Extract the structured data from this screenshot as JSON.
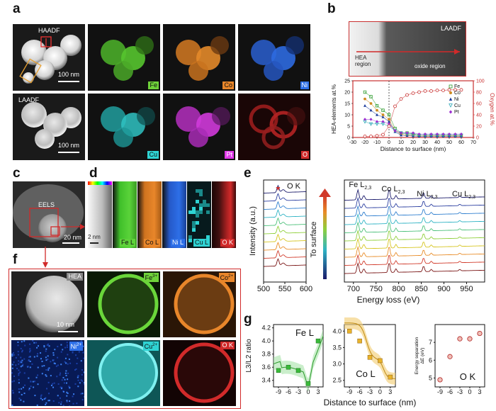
{
  "panels": {
    "a": {
      "letter": "a",
      "tiles_row1": [
        {
          "label": "HAADF",
          "type": "haadf"
        },
        {
          "label": "Fe",
          "type": "fe",
          "color": "#6fd23a"
        },
        {
          "label": "Co",
          "type": "co",
          "color": "#e8862a"
        },
        {
          "label": "Ni",
          "type": "ni",
          "color": "#2d6fe8"
        }
      ],
      "tiles_row2": [
        {
          "label": "LAADF",
          "type": "laadf"
        },
        {
          "label": "Cu",
          "type": "cu",
          "color": "#2fd3d3"
        },
        {
          "label": "Pt",
          "type": "pt",
          "color": "#e03ae8"
        },
        {
          "label": "O",
          "type": "o",
          "color": "#d12a2a"
        }
      ],
      "scalebar_1": "100 nm",
      "scalebar_2": "100 nm"
    },
    "b": {
      "letter": "b",
      "image_label": "LAADF",
      "hea_region": "HEA\nregion",
      "oxide_region": "oxide region",
      "y_left_label": "HEA-elements at.%",
      "y_right_label": "Oxygen at.%",
      "x_label": "Distance to surface (nm)",
      "x_ticks": [
        "-30",
        "-20",
        "-10",
        "0",
        "10",
        "20",
        "30",
        "40",
        "50",
        "60",
        "70"
      ],
      "y_left_ticks": [
        "0",
        "5",
        "10",
        "15",
        "20",
        "25"
      ],
      "y_right_ticks": [
        "0",
        "20",
        "40",
        "60",
        "80",
        "100"
      ],
      "legend": [
        {
          "name": "Fe",
          "color": "#2e9c2e"
        },
        {
          "name": "Co",
          "color": "#cf8b1f"
        },
        {
          "name": "Ni",
          "color": "#1a3a9a"
        },
        {
          "name": "Cu",
          "color": "#2aa6b5"
        },
        {
          "name": "Pt",
          "color": "#9b2bd0"
        }
      ]
    },
    "c": {
      "letter": "c",
      "label": "EELS",
      "scalebar": "20 nm"
    },
    "d": {
      "letter": "d",
      "scalebar": "2 nm",
      "tiles": [
        {
          "label": "Fe L",
          "color": "#5fd33a"
        },
        {
          "label": "Co L",
          "color": "#e8862a"
        },
        {
          "label": "Ni L",
          "color": "#2d6fe8"
        },
        {
          "label": "Cu L",
          "color": "#2fd3d3"
        },
        {
          "label": "O K",
          "color": "#d12a2a"
        }
      ]
    },
    "e": {
      "letter": "e",
      "ok_label": "O K",
      "fe_label": "Fe L",
      "co_label": "Co L",
      "ni_label": "Ni L",
      "cu_label": "Cu L",
      "sub_23": "2,3",
      "to_surface": "To surface",
      "y_label": "Intensity (a.u.)",
      "x_label": "Energy loss (eV)",
      "x_ticks_left": [
        "500",
        "550",
        "600"
      ],
      "x_ticks_right": [
        "700",
        "750",
        "800",
        "850",
        "900",
        "950"
      ]
    },
    "f": {
      "letter": "f",
      "tiles_row1": [
        {
          "label": "HEA"
        },
        {
          "label": "Fe",
          "sup": "3+"
        },
        {
          "label": "Co",
          "sup": "2+"
        }
      ],
      "tiles_row2": [
        {
          "label": "Ni",
          "sup": "2+"
        },
        {
          "label": "Cu",
          "sup": "2+"
        },
        {
          "label": "O K"
        }
      ],
      "scalebar": "10 nm"
    },
    "g": {
      "letter": "g",
      "y_label": "L3/L2 ratio",
      "x_label": "Distance to surface (nm)",
      "fe_label": "Fe L",
      "co_label": "Co L",
      "ok_label": "O K",
      "energy_label_1": "Energy separation",
      "energy_label_2": "ΔE (eV)",
      "fe_ticks_y": [
        "3.4",
        "3.6",
        "3.8",
        "4.0",
        "4.2"
      ],
      "co_ticks_y": [
        "2.5",
        "3.0",
        "3.5",
        "4.0"
      ],
      "ok_ticks_y": [
        "5",
        "6",
        "7"
      ],
      "x_ticks": [
        "-9",
        "-6",
        "-3",
        "0",
        "3"
      ]
    }
  },
  "chart_data": [
    {
      "type": "scatter",
      "panel": "b",
      "x": [
        -20,
        -15,
        -10,
        -5,
        0,
        5,
        10,
        15,
        20,
        25,
        30,
        35,
        40,
        45,
        50,
        55,
        60
      ],
      "series": [
        {
          "name": "Fe",
          "values": [
            20,
            18,
            14,
            12,
            10,
            4,
            2,
            2,
            1.5,
            1,
            1,
            1,
            1,
            1,
            1,
            1,
            1
          ]
        },
        {
          "name": "Co",
          "values": [
            17,
            15,
            12,
            10,
            8,
            3,
            1.5,
            1,
            1,
            1,
            0.8,
            0.8,
            0.8,
            0.8,
            0.8,
            0.8,
            0.8
          ]
        },
        {
          "name": "Ni",
          "values": [
            14,
            12,
            10,
            9,
            7,
            2.5,
            1,
            0.8,
            0.6,
            0.5,
            0.5,
            0.5,
            0.5,
            0.5,
            0.5,
            0.5,
            0.5
          ]
        },
        {
          "name": "Cu",
          "values": [
            7,
            6,
            6,
            6,
            5,
            3,
            2,
            1.5,
            1.2,
            1,
            1,
            1,
            1,
            1,
            1,
            1,
            1
          ]
        },
        {
          "name": "Pt",
          "values": [
            8,
            8,
            7,
            7,
            6,
            3,
            2,
            2,
            2,
            1.5,
            1.5,
            1.5,
            1.5,
            1.5,
            1.5,
            1.5,
            1.5
          ]
        },
        {
          "name": "O",
          "values": [
            2,
            2,
            3,
            5,
            20,
            55,
            68,
            75,
            78,
            80,
            82,
            82,
            83,
            83,
            84,
            84,
            84
          ]
        }
      ],
      "xlim": [
        -30,
        70
      ],
      "ylim_left": [
        0,
        25
      ],
      "ylim_right": [
        0,
        100
      ]
    },
    {
      "type": "scatter",
      "panel": "g-fe",
      "x": [
        -9,
        -6,
        -3,
        0,
        3
      ],
      "values": [
        3.55,
        3.6,
        3.55,
        3.35,
        4.0
      ],
      "ylim": [
        3.3,
        4.25
      ]
    },
    {
      "type": "scatter",
      "panel": "g-co",
      "x": [
        -9,
        -6,
        -3,
        0,
        3
      ],
      "values": [
        4.0,
        3.7,
        3.2,
        3.1,
        2.6
      ],
      "ylim": [
        2.3,
        4.2
      ]
    },
    {
      "type": "scatter",
      "panel": "g-ok",
      "x": [
        -9,
        -6,
        -3,
        0,
        3
      ],
      "values": [
        4.9,
        6.2,
        7.2,
        7.2,
        7.5
      ],
      "ylim": [
        4.5,
        8
      ]
    }
  ]
}
